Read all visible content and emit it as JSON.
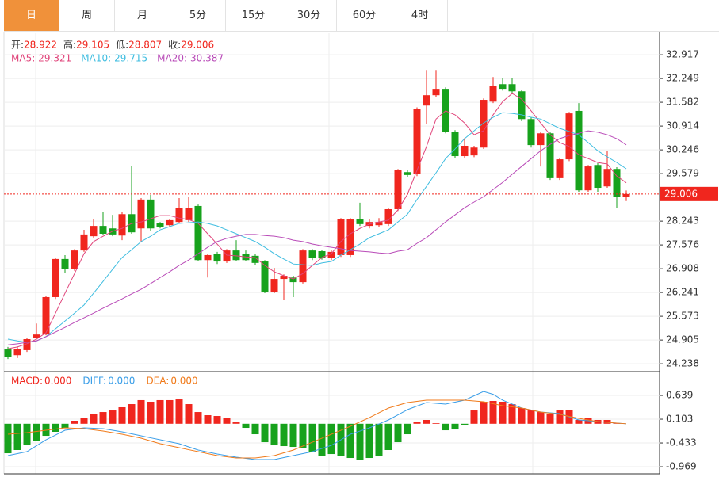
{
  "tabs": [
    "日",
    "周",
    "月",
    "5分",
    "15分",
    "30分",
    "60分",
    "4时"
  ],
  "active_tab": 0,
  "chart_data": [
    {
      "type": "candlestick",
      "ohlc_labels": [
        "开:",
        "高:",
        "低:",
        "收:"
      ],
      "up_color": "#f0261e",
      "down_color": "#17a21c",
      "grid": true,
      "last_price_line": true,
      "ylim": [
        24.04,
        33.52
      ],
      "yticks": [
        32.917,
        32.249,
        31.582,
        30.914,
        30.246,
        29.579,
        28.243,
        27.576,
        26.908,
        26.241,
        25.573,
        24.905,
        24.238
      ],
      "open": [
        24.64,
        24.48,
        24.62,
        24.97,
        25.06,
        26.11,
        27.18,
        26.89,
        27.42,
        27.82,
        28.11,
        28.04,
        27.84,
        28.44,
        28.04,
        28.85,
        28.18,
        28.13,
        28.22,
        28.27,
        28.67,
        27.15,
        27.33,
        27.11,
        27.42,
        27.33,
        27.27,
        27.11,
        26.26,
        26.62,
        26.66,
        26.53,
        27.42,
        27.4,
        27.2,
        27.29,
        27.29,
        28.29,
        28.11,
        28.13,
        28.16,
        28.58,
        29.62,
        29.56,
        31.49,
        31.78,
        31.96,
        30.76,
        30.07,
        30.09,
        30.31,
        31.6,
        32.09,
        32.09,
        31.89,
        31.11,
        30.38,
        30.71,
        29.45,
        29.98,
        31.34,
        29.11,
        29.82,
        29.22,
        29.71,
        28.922
      ],
      "high": [
        24.71,
        24.71,
        24.97,
        25.37,
        26.15,
        27.22,
        27.29,
        27.46,
        28.0,
        28.29,
        28.49,
        28.42,
        28.49,
        29.8,
        28.89,
        28.98,
        28.22,
        28.31,
        28.89,
        28.93,
        28.71,
        27.33,
        27.38,
        27.46,
        27.71,
        27.42,
        27.31,
        27.15,
        26.93,
        26.75,
        26.71,
        27.46,
        27.46,
        27.44,
        27.42,
        28.33,
        28.33,
        28.76,
        28.29,
        28.33,
        28.62,
        29.71,
        29.67,
        31.44,
        32.49,
        32.49,
        32.0,
        30.8,
        30.58,
        30.36,
        31.69,
        32.29,
        32.27,
        32.27,
        31.93,
        31.16,
        30.76,
        30.76,
        30.02,
        31.31,
        31.56,
        29.82,
        29.87,
        30.22,
        29.76,
        29.105
      ],
      "low": [
        24.37,
        24.4,
        24.57,
        24.97,
        25.04,
        26.06,
        26.78,
        26.85,
        27.38,
        27.78,
        27.85,
        27.82,
        27.71,
        27.89,
        27.67,
        27.98,
        28.04,
        28.09,
        28.18,
        28.22,
        27.11,
        26.66,
        27.04,
        27.07,
        27.11,
        27.11,
        27.02,
        26.22,
        26.22,
        26.04,
        26.11,
        26.49,
        27.15,
        27.16,
        27.15,
        27.24,
        27.24,
        28.11,
        28.04,
        28.07,
        28.11,
        28.53,
        29.49,
        29.51,
        30.98,
        31.73,
        30.71,
        30.02,
        30.02,
        30.04,
        30.27,
        31.56,
        31.91,
        31.85,
        31.05,
        30.31,
        29.78,
        29.4,
        29.4,
        29.93,
        29.07,
        29.07,
        29.07,
        29.18,
        28.62,
        28.807
      ],
      "close": [
        24.42,
        24.66,
        24.93,
        25.06,
        26.11,
        27.18,
        26.89,
        27.42,
        27.87,
        28.11,
        27.89,
        27.87,
        28.44,
        27.93,
        28.85,
        28.04,
        28.09,
        28.27,
        28.62,
        28.62,
        27.15,
        27.29,
        27.11,
        27.42,
        27.15,
        27.15,
        27.07,
        26.26,
        26.62,
        26.71,
        26.53,
        27.42,
        27.2,
        27.2,
        27.38,
        28.29,
        28.29,
        28.16,
        28.22,
        28.22,
        28.58,
        29.67,
        29.54,
        31.4,
        31.78,
        31.96,
        30.76,
        30.07,
        30.36,
        30.31,
        31.65,
        32.05,
        31.96,
        31.89,
        31.11,
        30.38,
        30.71,
        29.45,
        29.98,
        31.27,
        29.11,
        29.78,
        29.18,
        29.71,
        28.93,
        29.006
      ],
      "series": [
        {
          "name": "MA5:",
          "color": "#e0457b",
          "values": [
            24.66,
            24.71,
            24.8,
            24.93,
            25.11,
            25.66,
            26.22,
            26.77,
            27.33,
            27.67,
            27.82,
            27.96,
            28.04,
            28.18,
            28.22,
            28.31,
            28.4,
            28.4,
            28.33,
            28.29,
            28.18,
            27.89,
            27.6,
            27.29,
            27.27,
            27.24,
            27.22,
            27.0,
            26.82,
            26.71,
            26.62,
            26.77,
            27.0,
            27.22,
            27.33,
            27.67,
            27.89,
            28.04,
            28.16,
            28.22,
            28.27,
            28.56,
            29.0,
            29.67,
            30.34,
            31.11,
            31.34,
            31.23,
            31.0,
            30.67,
            30.78,
            31.23,
            31.6,
            31.83,
            31.67,
            31.34,
            31.0,
            30.67,
            30.45,
            30.34,
            30.11,
            30.0,
            29.89,
            29.85,
            29.51,
            29.321
          ]
        },
        {
          "name": "MA10:",
          "color": "#3fbde0",
          "values": [
            24.93,
            24.88,
            24.84,
            24.88,
            25.0,
            25.22,
            25.44,
            25.66,
            25.89,
            26.22,
            26.55,
            26.89,
            27.22,
            27.44,
            27.67,
            27.82,
            28.0,
            28.09,
            28.18,
            28.2,
            28.22,
            28.18,
            28.11,
            28.0,
            27.89,
            27.78,
            27.67,
            27.51,
            27.33,
            27.18,
            27.04,
            27.02,
            27.0,
            27.07,
            27.11,
            27.29,
            27.44,
            27.6,
            27.78,
            27.89,
            28.0,
            28.22,
            28.44,
            28.85,
            29.22,
            29.6,
            30.0,
            30.27,
            30.56,
            30.78,
            31.0,
            31.16,
            31.29,
            31.27,
            31.23,
            31.16,
            31.11,
            30.98,
            30.85,
            30.76,
            30.67,
            30.45,
            30.22,
            30.05,
            29.89,
            29.715
          ]
        },
        {
          "name": "MA20:",
          "color": "#b94bb8",
          "values": [
            24.77,
            24.8,
            24.84,
            24.88,
            25.0,
            25.13,
            25.26,
            25.4,
            25.53,
            25.66,
            25.8,
            25.93,
            26.06,
            26.2,
            26.33,
            26.49,
            26.66,
            26.82,
            27.0,
            27.15,
            27.33,
            27.51,
            27.67,
            27.76,
            27.82,
            27.87,
            27.87,
            27.84,
            27.82,
            27.78,
            27.71,
            27.67,
            27.6,
            27.55,
            27.51,
            27.47,
            27.42,
            27.4,
            27.38,
            27.35,
            27.33,
            27.4,
            27.44,
            27.62,
            27.78,
            28.0,
            28.22,
            28.42,
            28.62,
            28.78,
            28.93,
            29.13,
            29.33,
            29.56,
            29.78,
            30.0,
            30.22,
            30.4,
            30.56,
            30.65,
            30.71,
            30.78,
            30.74,
            30.67,
            30.56,
            30.387
          ]
        }
      ]
    },
    {
      "type": "macd",
      "up_color": "#f0261e",
      "down_color": "#17a21c",
      "grid": true,
      "ylim": [
        -1.129,
        1.158
      ],
      "yticks": [
        0.639,
        0.103,
        -0.433,
        -0.969
      ],
      "series": [
        {
          "name": "MACD:",
          "color": "#f0261e",
          "last_label": "0.000",
          "values": [
            -0.665,
            -0.593,
            -0.486,
            -0.379,
            -0.272,
            -0.182,
            -0.093,
            0.068,
            0.139,
            0.229,
            0.264,
            0.3,
            0.372,
            0.443,
            0.533,
            0.497,
            0.533,
            0.533,
            0.55,
            0.443,
            0.264,
            0.193,
            0.175,
            0.122,
            0.032,
            -0.093,
            -0.236,
            -0.415,
            -0.486,
            -0.504,
            -0.522,
            -0.54,
            -0.629,
            -0.718,
            -0.683,
            -0.718,
            -0.772,
            -0.808,
            -0.772,
            -0.718,
            -0.593,
            -0.415,
            -0.236,
            0.05,
            0.086,
            0.014,
            -0.147,
            -0.129,
            -0.021,
            0.3,
            0.497,
            0.515,
            0.497,
            0.443,
            0.354,
            0.3,
            0.264,
            0.229,
            0.3,
            0.318,
            0.086,
            0.139,
            0.086,
            0.086,
            0.014,
            0
          ]
        },
        {
          "name": "DIFF:",
          "color": "#3a9ee8",
          "last_label": "0.000",
          "values": [
            -0.718,
            -0.674,
            -0.629,
            -0.495,
            -0.361,
            -0.254,
            -0.147,
            -0.12,
            -0.093,
            -0.102,
            -0.111,
            -0.147,
            -0.182,
            -0.227,
            -0.272,
            -0.317,
            -0.361,
            -0.406,
            -0.45,
            -0.522,
            -0.593,
            -0.638,
            -0.683,
            -0.719,
            -0.754,
            -0.781,
            -0.808,
            -0.808,
            -0.808,
            -0.763,
            -0.718,
            -0.674,
            -0.629,
            -0.558,
            -0.486,
            -0.361,
            -0.236,
            -0.165,
            -0.093,
            -0.004,
            0.086,
            0.202,
            0.318,
            0.399,
            0.479,
            0.461,
            0.443,
            0.488,
            0.533,
            0.631,
            0.729,
            0.665,
            0.533,
            0.444,
            0.354,
            0.309,
            0.264,
            0.247,
            0.229,
            0.158,
            0.086,
            0.068,
            0.05,
            0.032,
            0.014,
            0
          ]
        },
        {
          "name": "DEA:",
          "color": "#f07a1a",
          "last_label": "0.000",
          "values": [
            -0.236,
            -0.218,
            -0.2,
            -0.174,
            -0.147,
            -0.12,
            -0.093,
            -0.102,
            -0.111,
            -0.138,
            -0.164,
            -0.2,
            -0.236,
            -0.281,
            -0.325,
            -0.388,
            -0.45,
            -0.495,
            -0.54,
            -0.585,
            -0.629,
            -0.674,
            -0.718,
            -0.745,
            -0.772,
            -0.772,
            -0.772,
            -0.745,
            -0.718,
            -0.656,
            -0.593,
            -0.504,
            -0.415,
            -0.326,
            -0.236,
            -0.147,
            -0.057,
            0.041,
            0.139,
            0.247,
            0.354,
            0.417,
            0.479,
            0.506,
            0.533,
            0.533,
            0.533,
            0.533,
            0.533,
            0.515,
            0.497,
            0.453,
            0.408,
            0.381,
            0.354,
            0.309,
            0.264,
            0.238,
            0.211,
            0.167,
            0.122,
            0.086,
            0.05,
            0.032,
            0.014,
            0
          ]
        }
      ]
    }
  ]
}
